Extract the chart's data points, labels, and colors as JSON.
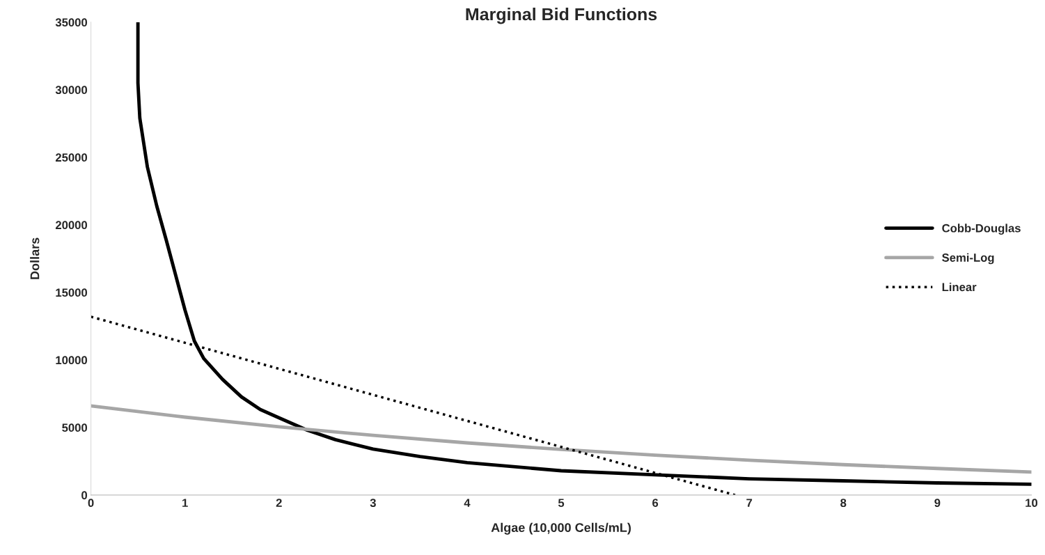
{
  "chart_data": {
    "type": "line",
    "title": "Marginal Bid Functions",
    "xlabel": "Algae (10,000 Cells/mL)",
    "ylabel": "Dollars",
    "xlim": [
      0,
      10
    ],
    "ylim": [
      0,
      35000
    ],
    "xticks": [
      0,
      1,
      2,
      3,
      4,
      5,
      6,
      7,
      8,
      9,
      10
    ],
    "yticks": [
      0,
      5000,
      10000,
      15000,
      20000,
      25000,
      30000,
      35000
    ],
    "grid": false,
    "legend": "right",
    "marker": "none",
    "series": [
      {
        "name": "Cobb-Douglas",
        "color": "#000000",
        "line_style": "solid",
        "x": [
          0.5,
          0.5,
          0.52,
          0.6,
          0.7,
          0.8,
          0.9,
          1.0,
          1.1,
          1.2,
          1.4,
          1.6,
          1.8,
          2.0,
          2.3,
          2.6,
          3,
          3.5,
          4,
          5,
          6,
          7,
          8,
          9,
          10
        ],
        "values": [
          35000,
          30500,
          27900,
          24300,
          21400,
          18900,
          16300,
          13700,
          11400,
          10100,
          8560,
          7270,
          6340,
          5720,
          4800,
          4100,
          3400,
          2850,
          2400,
          1800,
          1500,
          1200,
          1050,
          900,
          800
        ]
      },
      {
        "name": "Semi-Log",
        "color": "#a6a6a6",
        "line_style": "solid",
        "x": [
          0,
          1,
          2,
          3,
          4,
          5,
          6,
          7,
          8,
          9,
          10
        ],
        "values": [
          6600,
          5770,
          5050,
          4420,
          3860,
          3380,
          2950,
          2580,
          2250,
          1970,
          1700
        ]
      },
      {
        "name": "Linear",
        "color": "#000000",
        "line_style": "dotted",
        "x": [
          0,
          6.85
        ],
        "values": [
          13200,
          0
        ]
      }
    ]
  }
}
